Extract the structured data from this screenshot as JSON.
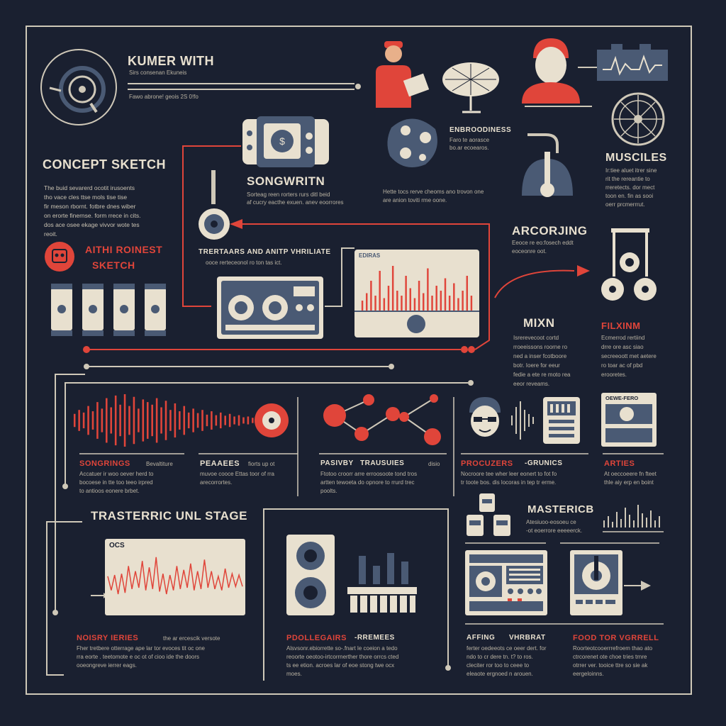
{
  "colors": {
    "background": "#1a2030",
    "cream": "#e8e0cf",
    "red": "#e0453a",
    "slate": "#4a5a74"
  },
  "header": {
    "title": "KUMER WITH",
    "sub1": "Sirs consenan Ekuneis",
    "sub2": "Fawo abrone! geois 2S 0!fo"
  },
  "concept": {
    "title": "CONCEPT SKETCH",
    "lines": [
      "The buid sevarerd ocotit irusoents",
      "tho vace cles ttse mols tise tise",
      "fir meson rbornt. fotbre dnes wiber",
      "on erorte finernse. form rrece in cits.",
      "dos ace osee ekage vivvor wote tes",
      "reoit."
    ]
  },
  "badge": {
    "title1": "AITHI ROINEST",
    "title2": "SKETCH"
  },
  "songwriting": {
    "title": "SONGWRITN",
    "lines": [
      "Sorteag reen rorters rurs ditl beid",
      "af cucry eacthe exuen. anev eoorrores"
    ]
  },
  "embroidery": {
    "title": "ENBROODINESS",
    "lines": [
      "Faro te aorasce",
      "bo.ar ecoearos."
    ]
  },
  "mid_caption": {
    "lines": [
      "Hette tocs rerve cheoms ano trovon one",
      "are anion toviti rme oone."
    ]
  },
  "muscles": {
    "title": "MUSCILES",
    "lines": [
      "Ir:tiee aluet itrer sine",
      "rit the rereantie to",
      "rreretects. dor mect",
      "toon en. fin as sooi",
      "oerr prcmerrrut."
    ]
  },
  "recording": {
    "title": "ARCORJING",
    "lines": [
      "Eeoce re eo:fosech eddt",
      "eoceonre oot."
    ]
  },
  "tertiaries": {
    "title": "TRERTAARS AND ANITP VHRILIATE",
    "lines": [
      "ooce rerteceonol ro ton tas ict."
    ]
  },
  "screen": {
    "label": "EDIRAS"
  },
  "mixing": {
    "title": "MIXN",
    "lines": [
      "Isrerevecoot cortd",
      "rroeeissons roorne ro",
      "ned a inser fcotboore",
      "botr. Ioere for eeur",
      "fedie a ete re moto rea",
      "eeor reveams."
    ]
  },
  "finishing": {
    "title": "FILXINM",
    "lines": [
      "Ecmerrod rertiind",
      "drre ore asc siao",
      "secreeoott met aetere",
      "ro toar ac of pbd",
      "erooretes."
    ]
  },
  "songrings": {
    "title": "SONGRINGS",
    "title_b": "Bevaltiture",
    "lines": [
      "Accatuer ir woo oever herd to",
      "bocoese in tte too teeo irpred",
      "to antioos eonere brbet."
    ]
  },
  "phrases": {
    "title": "PEAAEES",
    "title_b": "fiorts up ot",
    "lines": [
      "muvoe cooce Ettas toor of rra",
      "arecorrortes."
    ]
  },
  "pastry": {
    "title": "PASIVBY",
    "title_b": "TRAUSUIES",
    "title_c": "disio",
    "lines": [
      "Ftotoo croorr arre erroosoote tond tros",
      "artten tewoeta do opnore to rrurd trec",
      "poolts."
    ]
  },
  "producers": {
    "title": "PROCUZERS",
    "title_b": "-GRUNICS",
    "lines": [
      "Nocroore tee wher leer eonert to fot fo",
      "tr toote bos. dis locoras in tep tr erme."
    ]
  },
  "artists": {
    "title": "ARTIES",
    "lines": [
      "At oeccoeere fn fteet",
      "thle aiy erp en boint"
    ]
  },
  "panel_label": "OEWE-FERO",
  "transfer": {
    "title": "TRASTERRIC UNL STAGE",
    "screen_label": "OCS"
  },
  "mastering": {
    "title": "MASTERICB",
    "lines": [
      "Atesiuoo-eosoeu ce",
      "-ot eoerrore eeeeerck."
    ]
  },
  "noisy": {
    "title": "NOISRY IERIES",
    "title_b": "the ar ercescik versote",
    "lines": [
      "Fher tretbere otterrage ape lar tor evoces tit oc one",
      "rra eorte . teetomote e oc ot of cioo ide the doors",
      "ooeongreve ierrer eags."
    ]
  },
  "poolegaing": {
    "title": "PDOLLEGAIRS",
    "title_b": "-RREMEES",
    "lines": [
      "Alsvsonr.ebiorrette so-.fnart le coeion a tedo",
      "reoorte oeotoo-irtcorrnerther thore orrcs cted",
      "ts ee etion. acroes lar of eoe stong twe ocx",
      "moes."
    ]
  },
  "affing": {
    "title": "AFFING",
    "title_b": "VHRBRAT",
    "lines": [
      "ferter oedeeots ce oeer dert. for",
      "ndo to cr dere tn. t? to ros.",
      "cleciter ror too to ceee to",
      "eleaote ergnoed n arouen."
    ]
  },
  "food": {
    "title": "FOOD TOR VGRRELL",
    "lines": [
      "Roorteotcooerrrefroem thao ato",
      "ctrcorenet ote choe tries trnre",
      "otrrer ver. tooice ttre so sie ak",
      "eergeloinns."
    ]
  },
  "wave_values": [
    0.25,
    0.4,
    0.3,
    0.55,
    0.35,
    0.7,
    0.45,
    0.85,
    0.5,
    0.95,
    0.6,
    1.0,
    0.55,
    0.9,
    0.45,
    0.8,
    0.7,
    0.6,
    0.85,
    0.5,
    0.75,
    0.4,
    0.65,
    0.35,
    0.55,
    0.3,
    0.45,
    0.28,
    0.4,
    0.22,
    0.35,
    0.2,
    0.3,
    0.18,
    0.25,
    0.15,
    0.2,
    0.12,
    0.15,
    0.1,
    0.12
  ],
  "spectrum_values": [
    0.2,
    0.35,
    0.6,
    0.3,
    0.8,
    0.25,
    0.5,
    0.9,
    0.4,
    0.3,
    0.7,
    0.45,
    0.25,
    0.6,
    0.35,
    0.85,
    0.3,
    0.5,
    0.4,
    0.65,
    0.3,
    0.55,
    0.25,
    0.4,
    0.7,
    0.3
  ],
  "long_wave_values": [
    0.2,
    0.35,
    0.25,
    0.5,
    0.3,
    0.45,
    0.6,
    0.3,
    0.4,
    0.25,
    0.8,
    0.35,
    0.55,
    0.3,
    0.95,
    0.4,
    0.3,
    0.5,
    0.25,
    0.35,
    0.6,
    0.3,
    0.45,
    0.25,
    0.7,
    0.35,
    0.4,
    0.3,
    0.85,
    0.25,
    0.4,
    0.3,
    0.2,
    0.35,
    0.5,
    0.25,
    0.3,
    0.2,
    0.25,
    0.2
  ]
}
